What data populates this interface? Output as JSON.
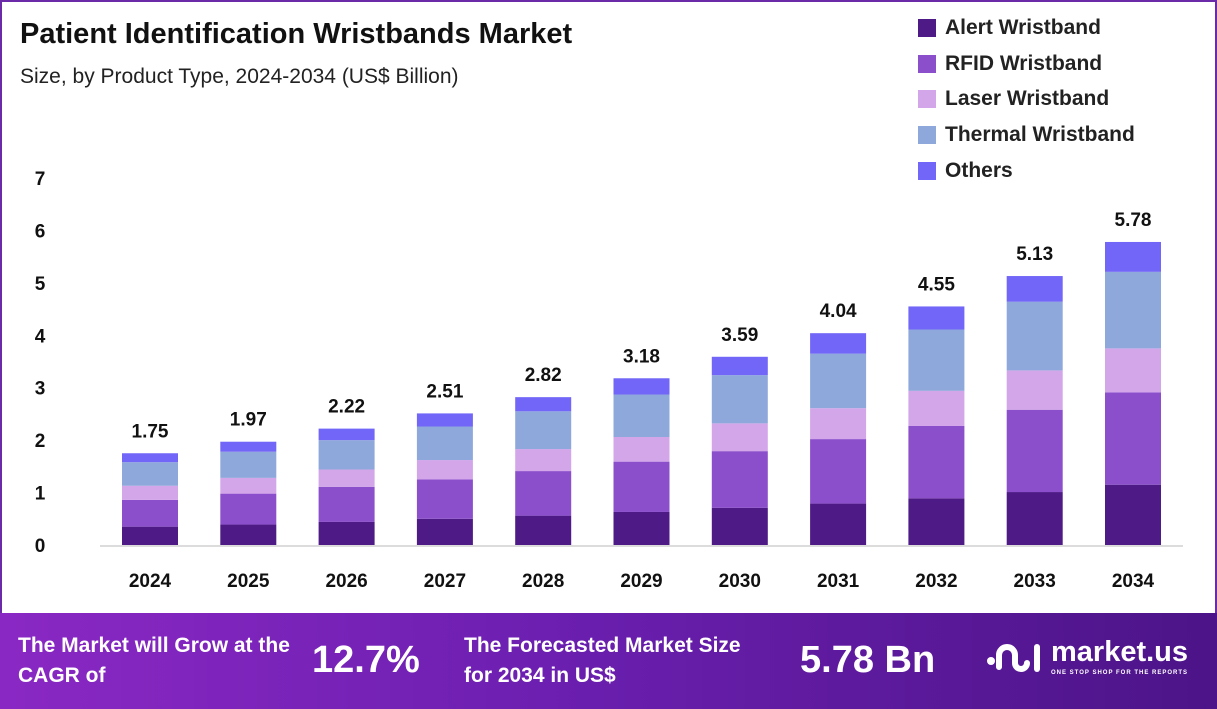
{
  "chart_data": {
    "type": "bar",
    "stacked": true,
    "title": "Patient Identification Wristbands Market",
    "subtitle": "Size, by Product Type, 2024-2034 (US$ Billion)",
    "categories": [
      "2024",
      "2025",
      "2026",
      "2027",
      "2028",
      "2029",
      "2030",
      "2031",
      "2032",
      "2033",
      "2034"
    ],
    "totals": [
      "1.75",
      "1.97",
      "2.22",
      "2.51",
      "2.82",
      "3.18",
      "3.59",
      "4.04",
      "4.55",
      "5.13",
      "5.78"
    ],
    "yticks": [
      "0",
      "1",
      "2",
      "3",
      "4",
      "5",
      "6",
      "7"
    ],
    "ylim": [
      0,
      7
    ],
    "legend_position": "top-right",
    "series": [
      {
        "name": "Alert Wristband",
        "color": "#4e1a86",
        "values": [
          0.35,
          0.39,
          0.44,
          0.5,
          0.56,
          0.63,
          0.71,
          0.79,
          0.89,
          1.01,
          1.15
        ]
      },
      {
        "name": "RFID Wristband",
        "color": "#8b4fcc",
        "values": [
          0.51,
          0.59,
          0.67,
          0.75,
          0.85,
          0.96,
          1.08,
          1.23,
          1.38,
          1.57,
          1.76
        ]
      },
      {
        "name": "Laser Wristband",
        "color": "#d3a6ea",
        "values": [
          0.27,
          0.3,
          0.33,
          0.37,
          0.42,
          0.47,
          0.53,
          0.59,
          0.67,
          0.75,
          0.84
        ]
      },
      {
        "name": "Thermal Wristband",
        "color": "#8fa8dc",
        "values": [
          0.45,
          0.5,
          0.56,
          0.64,
          0.72,
          0.81,
          0.92,
          1.04,
          1.17,
          1.31,
          1.46
        ]
      },
      {
        "name": "Others",
        "color": "#7166f7",
        "values": [
          0.17,
          0.19,
          0.22,
          0.25,
          0.27,
          0.31,
          0.35,
          0.39,
          0.44,
          0.49,
          0.57
        ]
      }
    ]
  },
  "banner": {
    "cagr_label": "The Market will Grow at the CAGR of",
    "cagr_value": "12.7%",
    "forecast_label": "The Forecasted Market Size for 2034 in US$",
    "forecast_value": "5.78 Bn",
    "logo_name": "market.us",
    "logo_tagline": "ONE STOP SHOP FOR THE REPORTS"
  }
}
